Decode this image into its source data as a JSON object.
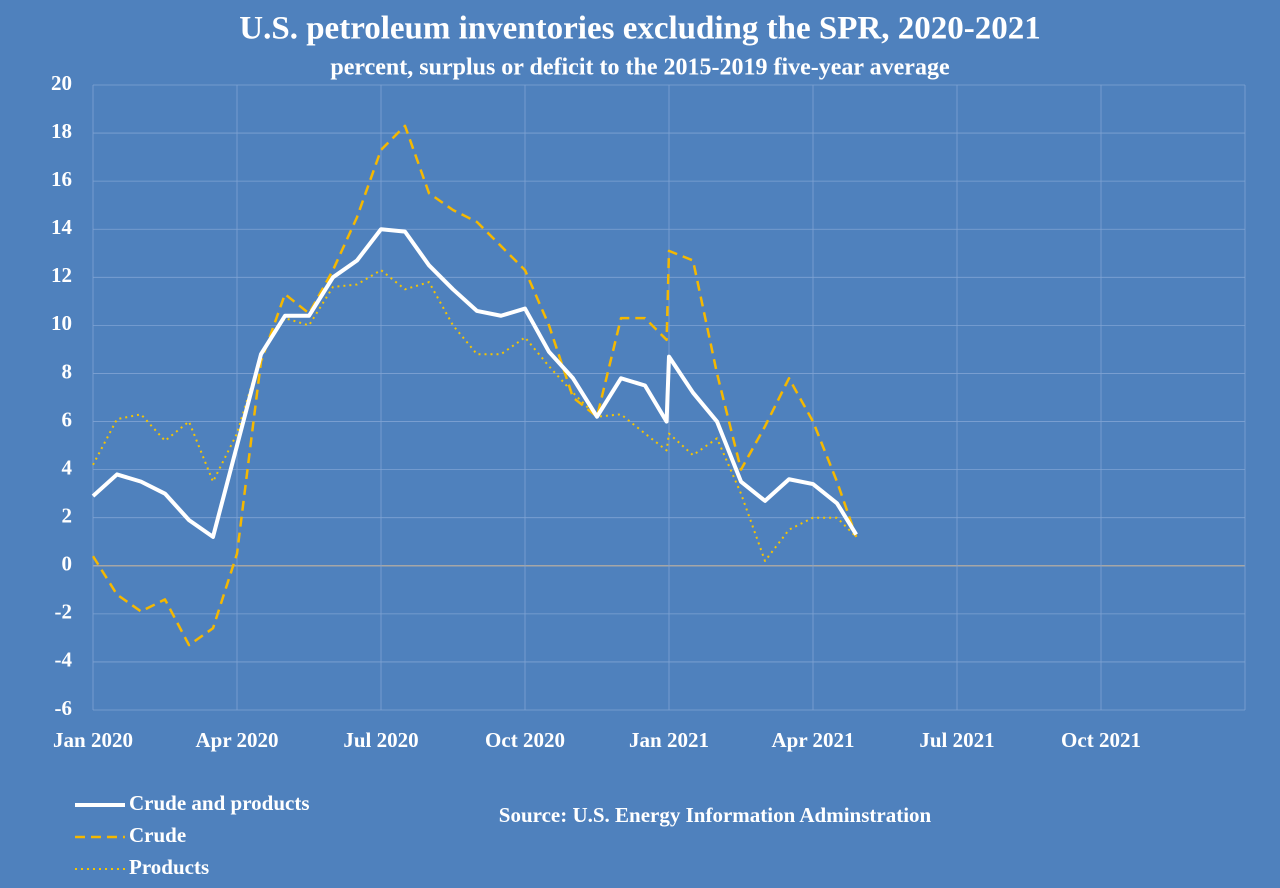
{
  "chart_data": {
    "type": "line",
    "title": "U.S. petroleum inventories excluding the SPR, 2020-2021",
    "subtitle": "percent, surplus or deficit to the 2015-2019 five-year average",
    "source": "Source: U.S. Energy Information Adminstration",
    "x": [
      0,
      0.5,
      1,
      1.5,
      2,
      2.5,
      3,
      3.5,
      4,
      4.5,
      5,
      5.5,
      6,
      6.5,
      7,
      7.5,
      8,
      8.5,
      9,
      9.5,
      10,
      10.5,
      11,
      11.5,
      11.95,
      12,
      12.5,
      13,
      13.5,
      14,
      14.5,
      15,
      15.5,
      15.9
    ],
    "series": [
      {
        "name": "Crude and products",
        "color": "#ffffff",
        "dash": "solid",
        "values": [
          2.9,
          3.8,
          3.5,
          3.0,
          1.9,
          1.2,
          5.0,
          8.8,
          10.4,
          10.4,
          12.0,
          12.7,
          14.0,
          13.9,
          12.5,
          11.5,
          10.6,
          10.4,
          10.7,
          8.9,
          7.8,
          6.2,
          7.8,
          7.5,
          6.0,
          8.7,
          7.2,
          6.0,
          3.5,
          2.7,
          3.6,
          3.4,
          2.6,
          1.3
        ]
      },
      {
        "name": "Crude",
        "color": "#f5b800",
        "dash": "dashed",
        "values": [
          0.4,
          -1.2,
          -1.9,
          -1.4,
          -3.3,
          -2.6,
          0.5,
          8.5,
          11.3,
          10.5,
          12.3,
          14.5,
          17.3,
          18.3,
          15.5,
          14.8,
          14.3,
          13.3,
          12.3,
          10.0,
          7.0,
          6.2,
          10.3,
          10.3,
          9.4,
          13.1,
          12.7,
          8.0,
          4.0,
          5.8,
          7.8,
          6.0,
          3.5,
          1.2
        ]
      },
      {
        "name": "Products",
        "color": "#f5c400",
        "dash": "dotted",
        "values": [
          4.2,
          6.1,
          6.3,
          5.2,
          6.0,
          3.5,
          5.5,
          8.8,
          10.3,
          10.0,
          11.6,
          11.7,
          12.3,
          11.5,
          11.8,
          10.0,
          8.8,
          8.8,
          9.5,
          8.3,
          7.2,
          6.2,
          6.3,
          5.5,
          4.8,
          5.5,
          4.6,
          5.3,
          3.0,
          0.2,
          1.5,
          2.0,
          2.0,
          1.2
        ]
      }
    ],
    "xlim": [
      0,
      24
    ],
    "xticks": [
      {
        "value": 0,
        "label": "Jan 2020"
      },
      {
        "value": 3,
        "label": "Apr 2020"
      },
      {
        "value": 6,
        "label": "Jul 2020"
      },
      {
        "value": 9,
        "label": "Oct 2020"
      },
      {
        "value": 12,
        "label": "Jan 2021"
      },
      {
        "value": 15,
        "label": "Apr 2021"
      },
      {
        "value": 18,
        "label": "Jul 2021"
      },
      {
        "value": 21,
        "label": "Oct 2021"
      }
    ],
    "ylim": [
      -6,
      20
    ],
    "yticks": [
      -6,
      -4,
      -2,
      0,
      2,
      4,
      6,
      8,
      10,
      12,
      14,
      16,
      18,
      20
    ],
    "grid": true,
    "legend": "bottom-left"
  }
}
